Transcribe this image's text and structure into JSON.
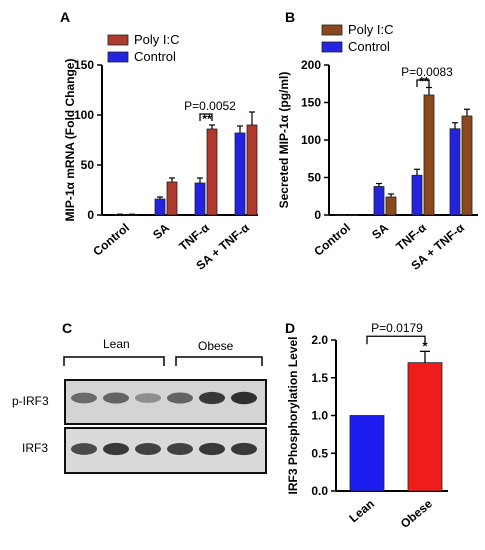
{
  "panels": {
    "A": "A",
    "B": "B",
    "C": "C",
    "D": "D"
  },
  "colors": {
    "poly": "#b03a2e",
    "control": "#2323e0",
    "panelB_poly": "#8b4a1e",
    "lean": "#1c1cf0",
    "obese": "#ef1c1c"
  },
  "chart_data": [
    {
      "id": "A",
      "type": "bar",
      "ylabel": "MIP-1α mRNA (Fold Change)",
      "ylim": [
        0,
        150
      ],
      "yticks": [
        "0",
        "50",
        "100",
        "150"
      ],
      "categories": [
        "Control",
        "SA",
        "TNF-α",
        "SA + TNF-α"
      ],
      "series": [
        {
          "name": "Control",
          "values": [
            0.5,
            16,
            32,
            82
          ],
          "errors": [
            0.3,
            2,
            5,
            7
          ]
        },
        {
          "name": "Poly I:C",
          "values": [
            0.5,
            33,
            86,
            90
          ],
          "errors": [
            0.3,
            4,
            4,
            13
          ]
        }
      ],
      "legend_order": [
        "Poly I:C",
        "Control"
      ],
      "significance": {
        "pvalue": "P=0.0052",
        "stars": "**"
      }
    },
    {
      "id": "B",
      "type": "bar",
      "ylabel": "Secreted MIP-1α (pg/ml)",
      "ylim": [
        0,
        200
      ],
      "yticks": [
        "0",
        "50",
        "100",
        "150",
        "200"
      ],
      "categories": [
        "Control",
        "SA",
        "TNF-α",
        "SA + TNF-α"
      ],
      "series": [
        {
          "name": "Control",
          "values": [
            0,
            38,
            53,
            115
          ],
          "errors": [
            0,
            4,
            8,
            8
          ]
        },
        {
          "name": "Poly I:C",
          "values": [
            0,
            24,
            160,
            132
          ],
          "errors": [
            0,
            4,
            10,
            9
          ]
        }
      ],
      "legend_order": [
        "Poly I:C",
        "Control"
      ],
      "significance": {
        "pvalue": "P=0.0083",
        "stars": "**"
      }
    },
    {
      "id": "D",
      "type": "bar",
      "ylabel": "IRF3 Phosphorylation Level",
      "ylim": [
        0,
        2.0
      ],
      "yticks": [
        "0.0",
        "0.5",
        "1.0",
        "1.5",
        "2.0"
      ],
      "categories": [
        "Lean",
        "Obese"
      ],
      "values": [
        1.0,
        1.7
      ],
      "errors": [
        0,
        0.15
      ],
      "significance": {
        "pvalue": "P=0.0179",
        "stars": "*"
      }
    }
  ],
  "blot": {
    "lean_label": "Lean",
    "obese_label": "Obese",
    "rows": [
      "p-IRF3",
      "IRF3"
    ],
    "lanes": 6,
    "pirf3_band_intensity": [
      0.55,
      0.6,
      0.35,
      0.6,
      0.85,
      0.9
    ],
    "irf3_band_intensity": [
      0.75,
      0.85,
      0.8,
      0.8,
      0.85,
      0.85
    ]
  }
}
